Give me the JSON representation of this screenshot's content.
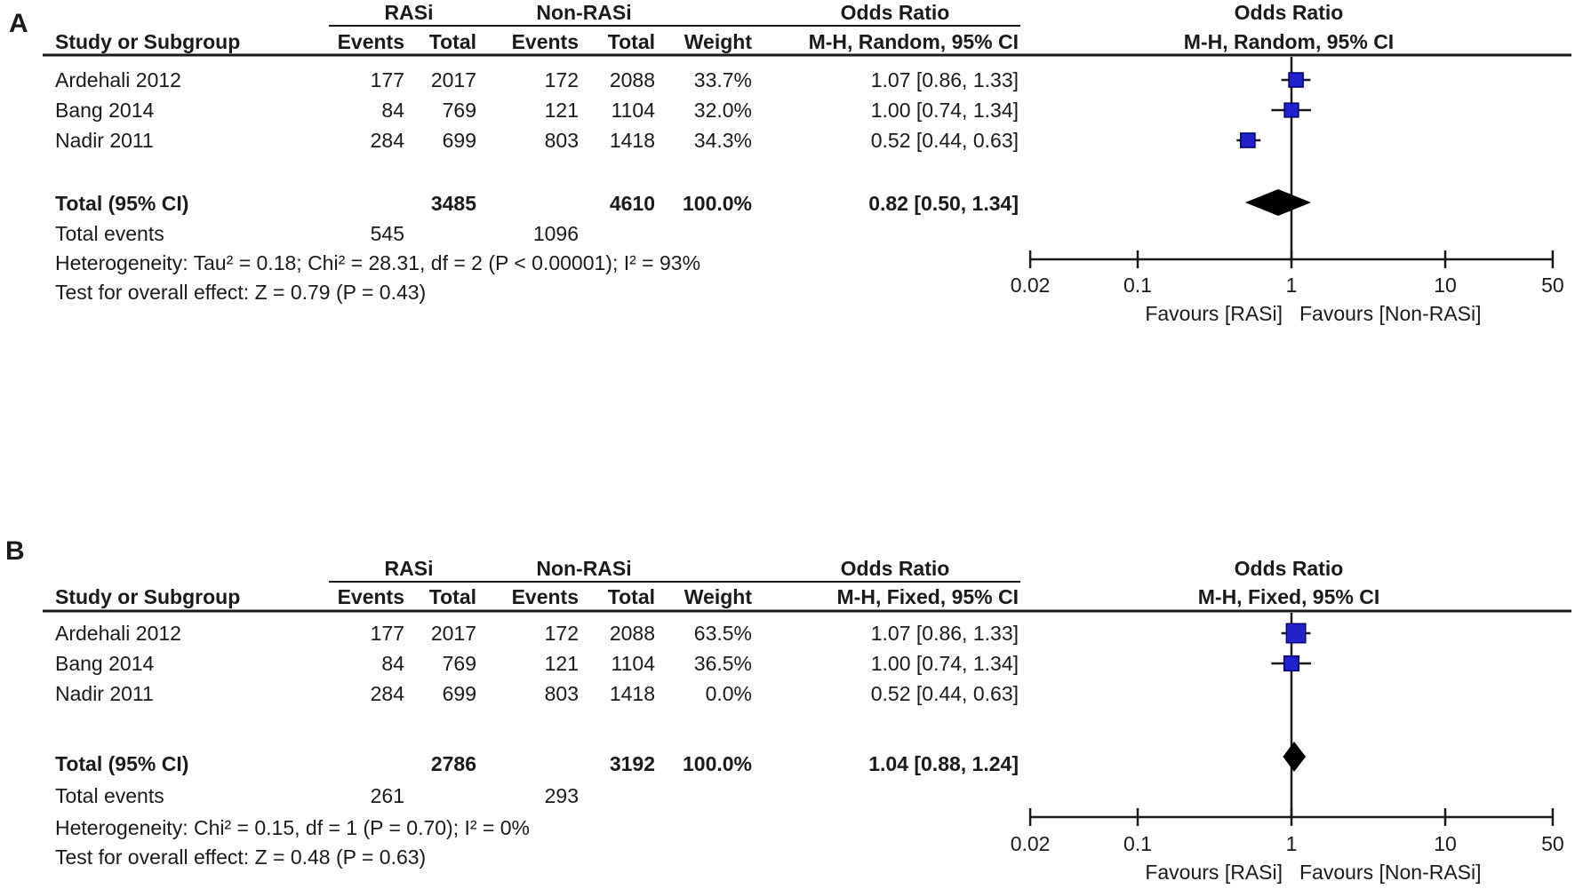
{
  "colors": {
    "marker_fill": "#2222cc",
    "marker_stroke": "#000070",
    "diamond": "#000000",
    "line": "#1a1a1a",
    "background": "#ffffff"
  },
  "chart_data": {
    "type": "forest",
    "scale": "log10",
    "axis": {
      "min": 0.02,
      "max": 50,
      "no_effect_line": 1,
      "tick_values": [
        0.02,
        0.1,
        1,
        10,
        50
      ],
      "tick_labels": [
        "0.02",
        "0.1",
        "1",
        "10",
        "50"
      ]
    },
    "panels": [
      {
        "label": "A",
        "model": "Random",
        "headers": {
          "group_exp": "RASi",
          "group_ctrl": "Non-RASi",
          "or_col": "Odds Ratio",
          "or_plot": "Odds Ratio",
          "study": "Study or Subgroup",
          "events1": "Events",
          "total1": "Total",
          "events2": "Events",
          "total2": "Total",
          "weight": "Weight",
          "effect_col": "M-H, Random, 95% CI",
          "effect_plot": "M-H, Random, 95% CI"
        },
        "studies": [
          {
            "name": "Ardehali 2012",
            "events1": "177",
            "total1": "2017",
            "events2": "172",
            "total2": "2088",
            "weight": "33.7%",
            "weight_value": 33.7,
            "or": 1.07,
            "ci_low": 0.86,
            "ci_high": 1.33,
            "effect_text": "1.07 [0.86, 1.33]"
          },
          {
            "name": "Bang 2014",
            "events1": "84",
            "total1": "769",
            "events2": "121",
            "total2": "1104",
            "weight": "32.0%",
            "weight_value": 32.0,
            "or": 1.0,
            "ci_low": 0.74,
            "ci_high": 1.34,
            "effect_text": "1.00 [0.74, 1.34]"
          },
          {
            "name": "Nadir 2011",
            "events1": "284",
            "total1": "699",
            "events2": "803",
            "total2": "1418",
            "weight": "34.3%",
            "weight_value": 34.3,
            "or": 0.52,
            "ci_low": 0.44,
            "ci_high": 0.63,
            "effect_text": "0.52 [0.44, 0.63]"
          }
        ],
        "total": {
          "label": "Total (95% CI)",
          "total1": "3485",
          "total2": "4610",
          "weight": "100.0%",
          "or": 0.82,
          "ci_low": 0.5,
          "ci_high": 1.34,
          "effect_text": "0.82 [0.50, 1.34]"
        },
        "total_events": {
          "label": "Total events",
          "events1": "545",
          "events2": "1096"
        },
        "heterogeneity": "Heterogeneity: Tau² = 0.18; Chi² = 28.31, df = 2 (P < 0.00001); I² = 93%",
        "overall_test": "Test for overall effect: Z = 0.79 (P = 0.43)",
        "favours_left": "Favours [RASi]",
        "favours_right": "Favours [Non-RASi]"
      },
      {
        "label": "B",
        "model": "Fixed",
        "headers": {
          "group_exp": "RASi",
          "group_ctrl": "Non-RASi",
          "or_col": "Odds Ratio",
          "or_plot": "Odds Ratio",
          "study": "Study or Subgroup",
          "events1": "Events",
          "total1": "Total",
          "events2": "Events",
          "total2": "Total",
          "weight": "Weight",
          "effect_col": "M-H, Fixed, 95% CI",
          "effect_plot": "M-H, Fixed, 95% CI"
        },
        "studies": [
          {
            "name": "Ardehali 2012",
            "events1": "177",
            "total1": "2017",
            "events2": "172",
            "total2": "2088",
            "weight": "63.5%",
            "weight_value": 63.5,
            "or": 1.07,
            "ci_low": 0.86,
            "ci_high": 1.33,
            "effect_text": "1.07 [0.86, 1.33]"
          },
          {
            "name": "Bang 2014",
            "events1": "84",
            "total1": "769",
            "events2": "121",
            "total2": "1104",
            "weight": "36.5%",
            "weight_value": 36.5,
            "or": 1.0,
            "ci_low": 0.74,
            "ci_high": 1.34,
            "effect_text": "1.00 [0.74, 1.34]"
          },
          {
            "name": "Nadir 2011",
            "events1": "284",
            "total1": "699",
            "events2": "803",
            "total2": "1418",
            "weight": "0.0%",
            "weight_value": 0.0,
            "or": 0.52,
            "ci_low": 0.44,
            "ci_high": 0.63,
            "effect_text": "0.52 [0.44, 0.63]"
          }
        ],
        "total": {
          "label": "Total (95% CI)",
          "total1": "2786",
          "total2": "3192",
          "weight": "100.0%",
          "or": 1.04,
          "ci_low": 0.88,
          "ci_high": 1.24,
          "effect_text": "1.04 [0.88, 1.24]"
        },
        "total_events": {
          "label": "Total events",
          "events1": "261",
          "events2": "293"
        },
        "heterogeneity": "Heterogeneity: Chi² = 0.15, df = 1 (P = 0.70); I² = 0%",
        "overall_test": "Test for overall effect: Z = 0.48 (P = 0.63)",
        "favours_left": "Favours [RASi]",
        "favours_right": "Favours [Non-RASi]"
      }
    ]
  }
}
